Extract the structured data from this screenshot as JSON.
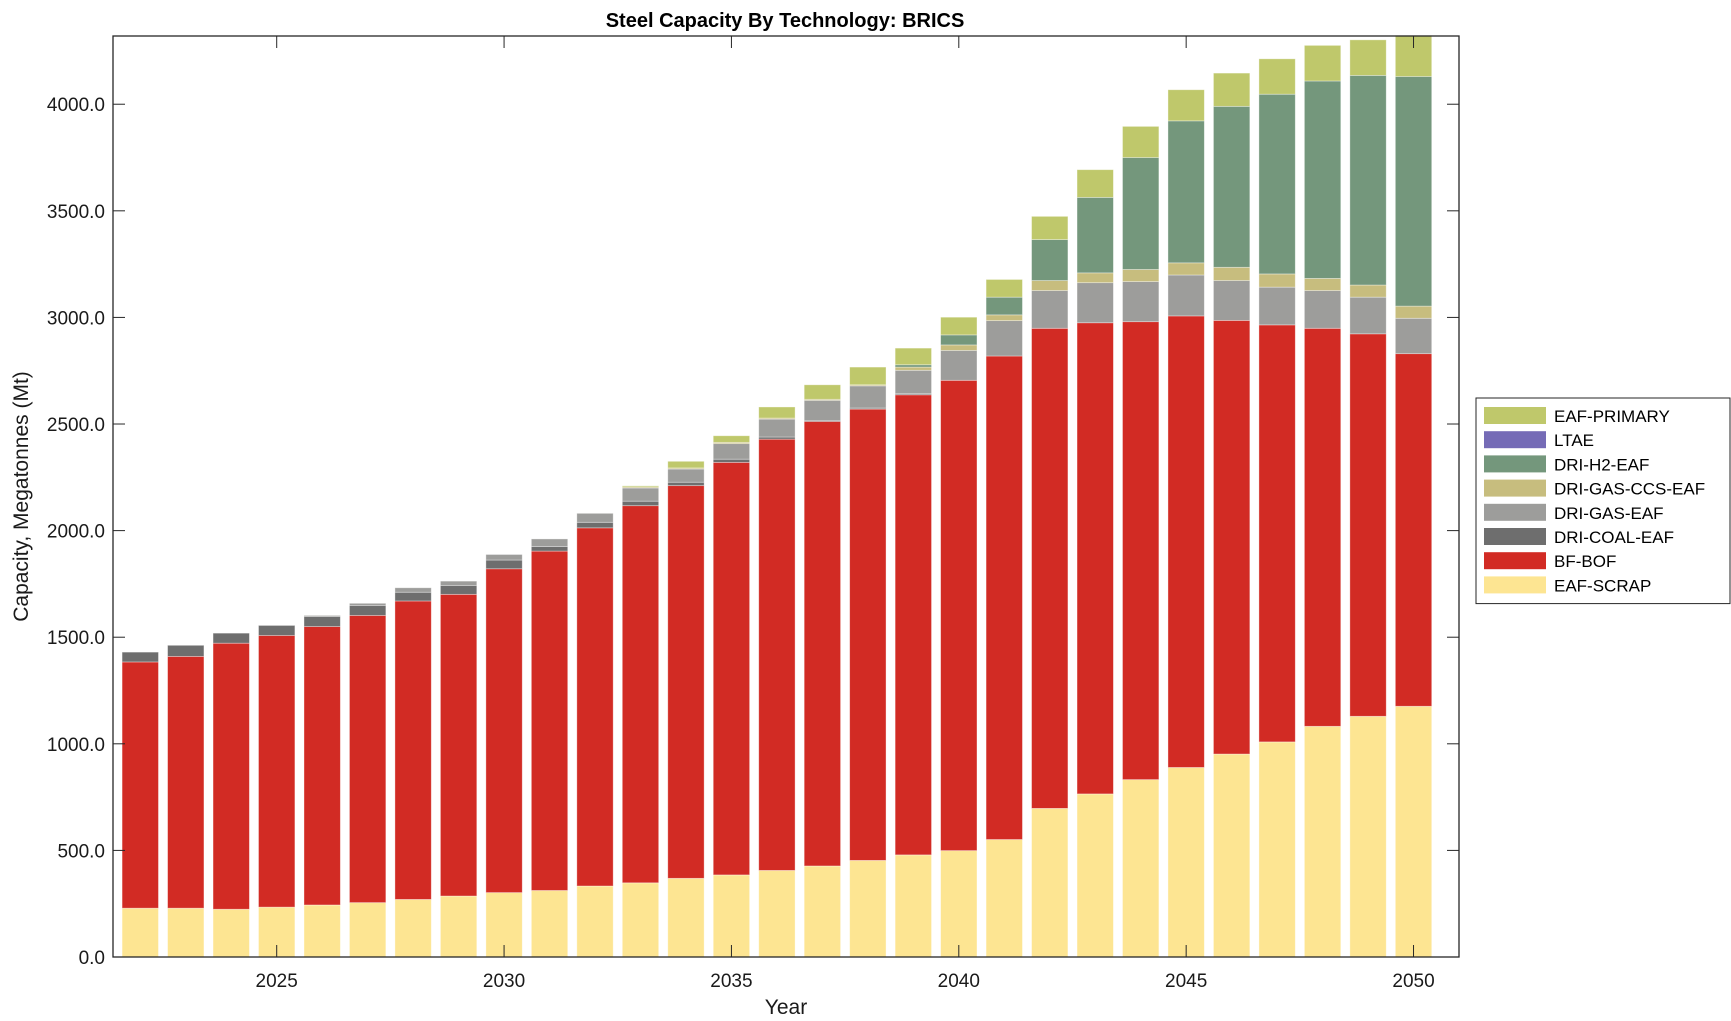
{
  "chart_data": {
    "type": "bar",
    "stacked": true,
    "title": "Steel Capacity By Technology: BRICS",
    "xlabel": "Year",
    "ylabel": "Capacity, Megatonnes (Mt)",
    "ylim": [
      0,
      4320
    ],
    "xlim": [
      2021.4,
      2051.0
    ],
    "grid": false,
    "legend_position": "right",
    "x_ticks": [
      2025,
      2030,
      2035,
      2040,
      2045,
      2050
    ],
    "x_tick_labels": [
      "2025",
      "2030",
      "2035",
      "2040",
      "2045",
      "2050"
    ],
    "y_ticks": [
      0,
      500,
      1000,
      1500,
      2000,
      2500,
      3000,
      3500,
      4000
    ],
    "y_tick_labels": [
      "0.0",
      "500.0",
      "1000.0",
      "1500.0",
      "2000.0",
      "2500.0",
      "3000.0",
      "3500.0",
      "4000.0"
    ],
    "categories": [
      2022,
      2023,
      2024,
      2025,
      2026,
      2027,
      2028,
      2029,
      2030,
      2031,
      2032,
      2033,
      2034,
      2035,
      2036,
      2037,
      2038,
      2039,
      2040,
      2041,
      2042,
      2043,
      2044,
      2045,
      2046,
      2047,
      2048,
      2049,
      2050
    ],
    "series": [
      {
        "name": "EAF-SCRAP",
        "color": "#FDE592",
        "values": [
          229,
          229,
          224,
          234,
          244,
          255,
          270,
          286,
          302,
          312,
          333,
          348,
          369,
          385,
          406,
          427,
          453,
          479,
          499,
          551,
          697,
          765,
          832,
          889,
          952,
          1009,
          1082,
          1129,
          1176
        ]
      },
      {
        "name": "BF-BOF",
        "color": "#D22B24",
        "values": [
          1155,
          1181,
          1248,
          1274,
          1306,
          1347,
          1400,
          1415,
          1519,
          1592,
          1680,
          1769,
          1842,
          1935,
          2023,
          2085,
          2117,
          2158,
          2206,
          2268,
          2252,
          2210,
          2148,
          2118,
          2034,
          1956,
          1867,
          1794,
          1654
        ]
      },
      {
        "name": "DRI-COAL-EAF",
        "color": "#6E6E6E",
        "values": [
          46,
          52,
          47,
          47,
          47,
          47,
          41,
          42,
          41,
          21,
          26,
          21,
          16,
          15,
          10,
          5,
          5,
          5,
          0,
          0,
          0,
          0,
          0,
          0,
          0,
          0,
          0,
          0,
          0
        ]
      },
      {
        "name": "DRI-GAS-EAF",
        "color": "#9D9D9B",
        "values": [
          0,
          0,
          0,
          2,
          5,
          10,
          21,
          20,
          26,
          36,
          42,
          62,
          62,
          73,
          84,
          94,
          104,
          110,
          140,
          166,
          177,
          188,
          188,
          192,
          187,
          177,
          177,
          172,
          166
        ]
      },
      {
        "name": "DRI-GAS-CCS-EAF",
        "color": "#C7BD7E",
        "values": [
          0,
          0,
          0,
          0,
          0,
          0,
          0,
          0,
          0,
          0,
          0,
          5,
          5,
          6,
          5,
          5,
          5,
          15,
          26,
          27,
          47,
          46,
          57,
          57,
          62,
          62,
          57,
          57,
          57
        ]
      },
      {
        "name": "DRI-H2-EAF",
        "color": "#74977C",
        "values": [
          0,
          0,
          0,
          0,
          0,
          0,
          0,
          0,
          0,
          0,
          0,
          0,
          0,
          0,
          0,
          0,
          0,
          11,
          47,
          83,
          192,
          354,
          525,
          666,
          755,
          843,
          926,
          983,
          1077
        ]
      },
      {
        "name": "LTAE",
        "color": "#756BB6",
        "values": [
          0,
          0,
          0,
          0,
          0,
          0,
          0,
          0,
          0,
          0,
          0,
          0,
          0,
          0,
          0,
          0,
          0,
          0,
          0,
          0,
          0,
          0,
          0,
          0,
          0,
          0,
          0,
          0,
          0
        ]
      },
      {
        "name": "EAF-PRIMARY",
        "color": "#BFC86B",
        "values": [
          0,
          0,
          0,
          0,
          0,
          0,
          0,
          0,
          0,
          0,
          0,
          5,
          31,
          31,
          52,
          68,
          83,
          78,
          83,
          83,
          109,
          130,
          146,
          146,
          156,
          166,
          167,
          167,
          193
        ]
      }
    ],
    "legend_order": [
      "EAF-PRIMARY",
      "LTAE",
      "DRI-H2-EAF",
      "DRI-GAS-CCS-EAF",
      "DRI-GAS-EAF",
      "DRI-COAL-EAF",
      "BF-BOF",
      "EAF-SCRAP"
    ]
  }
}
